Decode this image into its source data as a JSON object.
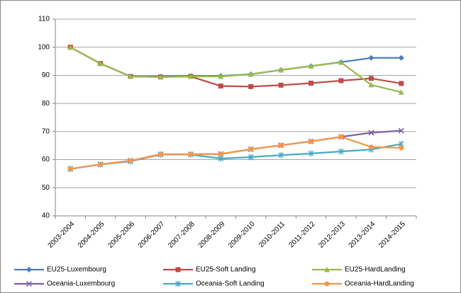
{
  "chart_data": {
    "type": "line",
    "categories": [
      "2003-2004",
      "2004-2005",
      "2005-2006",
      "2006-2007",
      "2007-2008",
      "2008-2009",
      "2009-2010",
      "2010-2011",
      "2011-2012",
      "2012-2013",
      "2013-2014",
      "2014-2015"
    ],
    "series": [
      {
        "name": "EU25-Luxembourg",
        "color": "#4a7ebb",
        "marker": "diamond",
        "values": [
          100,
          94.2,
          89.6,
          89.6,
          89.8,
          89.8,
          90.4,
          91.9,
          93.3,
          94.7,
          96.2,
          96.2
        ]
      },
      {
        "name": "EU25-Soft Landing",
        "color": "#be4b48",
        "marker": "square",
        "values": [
          100,
          94.2,
          89.6,
          89.4,
          89.6,
          86.2,
          86.0,
          86.5,
          87.2,
          88.1,
          88.9,
          87.1
        ]
      },
      {
        "name": "EU25-HardLanding",
        "color": "#98b954",
        "marker": "triangle",
        "values": [
          100,
          94.2,
          89.6,
          89.4,
          89.6,
          89.6,
          90.4,
          91.9,
          93.3,
          94.6,
          86.6,
          84.0
        ]
      },
      {
        "name": "Oceania-Luxembourg",
        "color": "#7d60a0",
        "marker": "x",
        "values": [
          56.7,
          58.3,
          59.6,
          61.9,
          61.9,
          62.0,
          63.7,
          65.1,
          66.5,
          68.1,
          69.6,
          70.3
        ]
      },
      {
        "name": "Oceania-Soft Landing",
        "color": "#46aac5",
        "marker": "star",
        "values": [
          56.7,
          58.3,
          59.4,
          61.8,
          61.8,
          60.4,
          60.9,
          61.6,
          62.2,
          62.9,
          63.6,
          65.6
        ]
      },
      {
        "name": "Oceania-HardLanding",
        "color": "#f79646",
        "marker": "circle",
        "values": [
          56.7,
          58.3,
          59.6,
          61.9,
          61.9,
          62.0,
          63.7,
          65.1,
          66.5,
          68.1,
          64.5,
          64.2
        ]
      }
    ],
    "ylim": [
      40,
      110
    ],
    "yticks": [
      40,
      50,
      60,
      70,
      80,
      90,
      100,
      110
    ],
    "grid": true,
    "legend": "bottom"
  }
}
